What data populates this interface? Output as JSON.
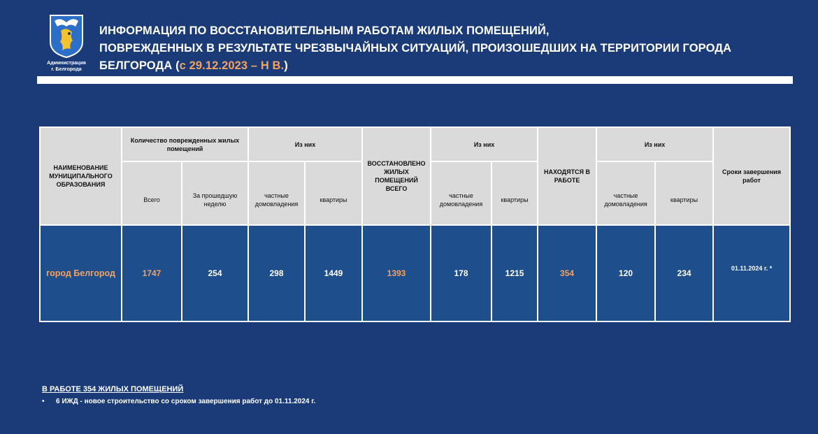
{
  "logo": {
    "caption_line1": "Администрация",
    "caption_line2": "г. Белгорода"
  },
  "title": {
    "line1": "ИНФОРМАЦИЯ ПО ВОССТАНОВИТЕЛЬНЫМ РАБОТАМ ЖИЛЫХ ПОМЕЩЕНИЙ,",
    "line2": "ПОВРЕЖДЕННЫХ В РЕЗУЛЬТАТЕ  ЧРЕЗВЫЧАЙНЫХ СИТУАЦИЙ, ПРОИЗОШЕДШИХ НА ТЕРРИТОРИИ ГОРОДА",
    "line3_prefix": "БЕЛГОРОДА (",
    "line3_accent": "с 29.12.2023 – Н В.",
    "line3_suffix": ")"
  },
  "table": {
    "headers": {
      "municipality": "НАИМЕНОВАНИЕ МУНИЦИПАЛЬНОГО ОБРАЗОВАНИЯ",
      "damaged_count": "Количество поврежденных жилых помещений",
      "of_them_1": "Из них",
      "restored": "ВОССТАНОВЛЕНО ЖИЛЫХ ПОМЕЩЕНИЙ ВСЕГО",
      "of_them_2": "Из них",
      "in_progress": "НАХОДЯТСЯ В РАБОТЕ",
      "of_them_3": "Из них",
      "deadline": "Сроки завершения работ",
      "total": "Всего",
      "last_week": "За прошедшую неделю",
      "private_houses_1": "частные домовладения",
      "apartments_1": "квартиры",
      "private_houses_2": "частные домовладения",
      "apartments_2": "квартиры",
      "private_houses_3": "частные домовладения",
      "apartments_3": "квартиры"
    },
    "row": {
      "name": "город Белгород",
      "total": "1747",
      "last_week": "254",
      "private_houses_1": "298",
      "apartments_1": "1449",
      "restored": "1393",
      "private_houses_2": "178",
      "apartments_2": "1215",
      "in_progress": "354",
      "private_houses_3": "120",
      "apartments_3": "234",
      "deadline": "01.11.2024 г. *"
    }
  },
  "note": {
    "heading": "В РАБОТЕ  354  ЖИЛЫХ ПОМЕЩЕНИЙ",
    "bullet": "•",
    "item": "6 ИЖД - новое строительство со сроком завершения работ до 01.11.2024 г."
  },
  "colors": {
    "background": "#1a3b78",
    "accent": "#f4a261",
    "header_cell": "#dadada",
    "data_cell": "#1f4e8c"
  }
}
